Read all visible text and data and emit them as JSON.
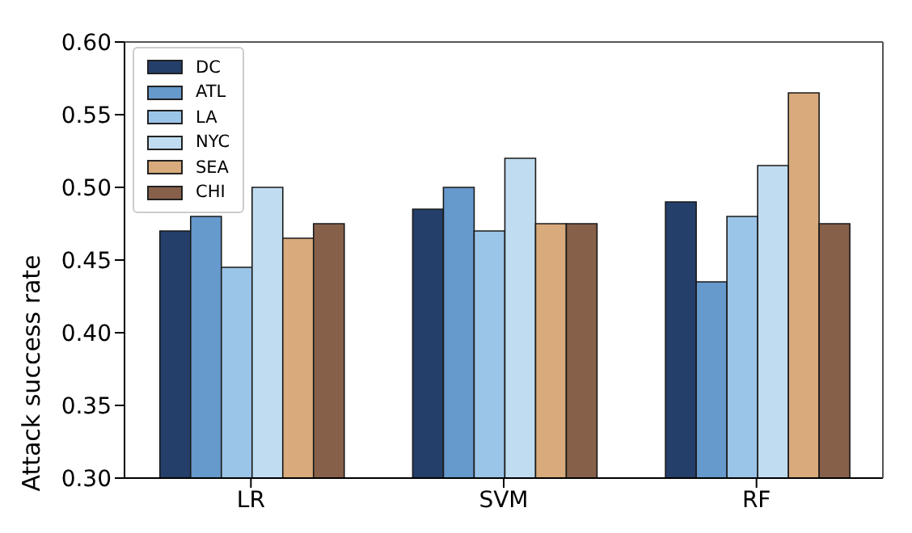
{
  "chart_data": {
    "type": "bar",
    "ylabel": "Attack success rate",
    "categories": [
      "LR",
      "SVM",
      "RF"
    ],
    "series": [
      {
        "name": "DC",
        "color": "#253f6b",
        "values": [
          0.47,
          0.485,
          0.49
        ]
      },
      {
        "name": "ATL",
        "color": "#6699cc",
        "values": [
          0.48,
          0.5,
          0.435
        ]
      },
      {
        "name": "LA",
        "color": "#9bc5e8",
        "values": [
          0.445,
          0.47,
          0.48
        ]
      },
      {
        "name": "NYC",
        "color": "#c0dcf0",
        "values": [
          0.5,
          0.52,
          0.515
        ]
      },
      {
        "name": "SEA",
        "color": "#d8aa7c",
        "values": [
          0.465,
          0.475,
          0.565
        ]
      },
      {
        "name": "CHI",
        "color": "#87604a",
        "values": [
          0.475,
          0.475,
          0.475
        ]
      }
    ],
    "ylim": [
      0.3,
      0.6
    ],
    "yticks": [
      {
        "value": 0.3,
        "label": "0.30"
      },
      0.35,
      {
        "value": 0.4,
        "label": "0.40"
      },
      0.45,
      {
        "value": 0.5,
        "label": "0.50"
      },
      0.55,
      {
        "value": 0.6,
        "label": "0.60"
      }
    ],
    "grid": false,
    "legend": "top left"
  }
}
